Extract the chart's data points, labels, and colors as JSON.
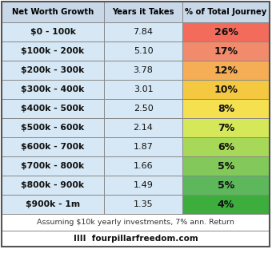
{
  "header": [
    "Net Worth Growth",
    "Years it Takes",
    "% of Total Journey"
  ],
  "rows": [
    [
      "$0 - 100k",
      "7.84",
      "26%"
    ],
    [
      "$100k - 200k",
      "5.10",
      "17%"
    ],
    [
      "$200k - 300k",
      "3.78",
      "12%"
    ],
    [
      "$300k - 400k",
      "3.01",
      "10%"
    ],
    [
      "$400k - 500k",
      "2.50",
      "8%"
    ],
    [
      "$500k - 600k",
      "2.14",
      "7%"
    ],
    [
      "$600k - 700k",
      "1.87",
      "6%"
    ],
    [
      "$700k - 800k",
      "1.66",
      "5%"
    ],
    [
      "$800k - 900k",
      "1.49",
      "5%"
    ],
    [
      "$900k - 1m",
      "1.35",
      "4%"
    ]
  ],
  "col3_colors": [
    "#F26B5B",
    "#F28B6B",
    "#F5AE55",
    "#F5C842",
    "#F5E050",
    "#D4E85A",
    "#A8D858",
    "#82C85A",
    "#5CB85A",
    "#3DAD3D"
  ],
  "header_bg": "#C8D8E8",
  "header_fg": "#000000",
  "cell_bg": "#D6E8F5",
  "border_color": "#888888",
  "outer_border": "#555555",
  "footnote": "Assuming $10k yearly investments, 7% ann. Return",
  "credit": "IIII  fourpillarfreedom.com",
  "fig_w": 3.4,
  "fig_h": 3.17,
  "dpi": 100
}
